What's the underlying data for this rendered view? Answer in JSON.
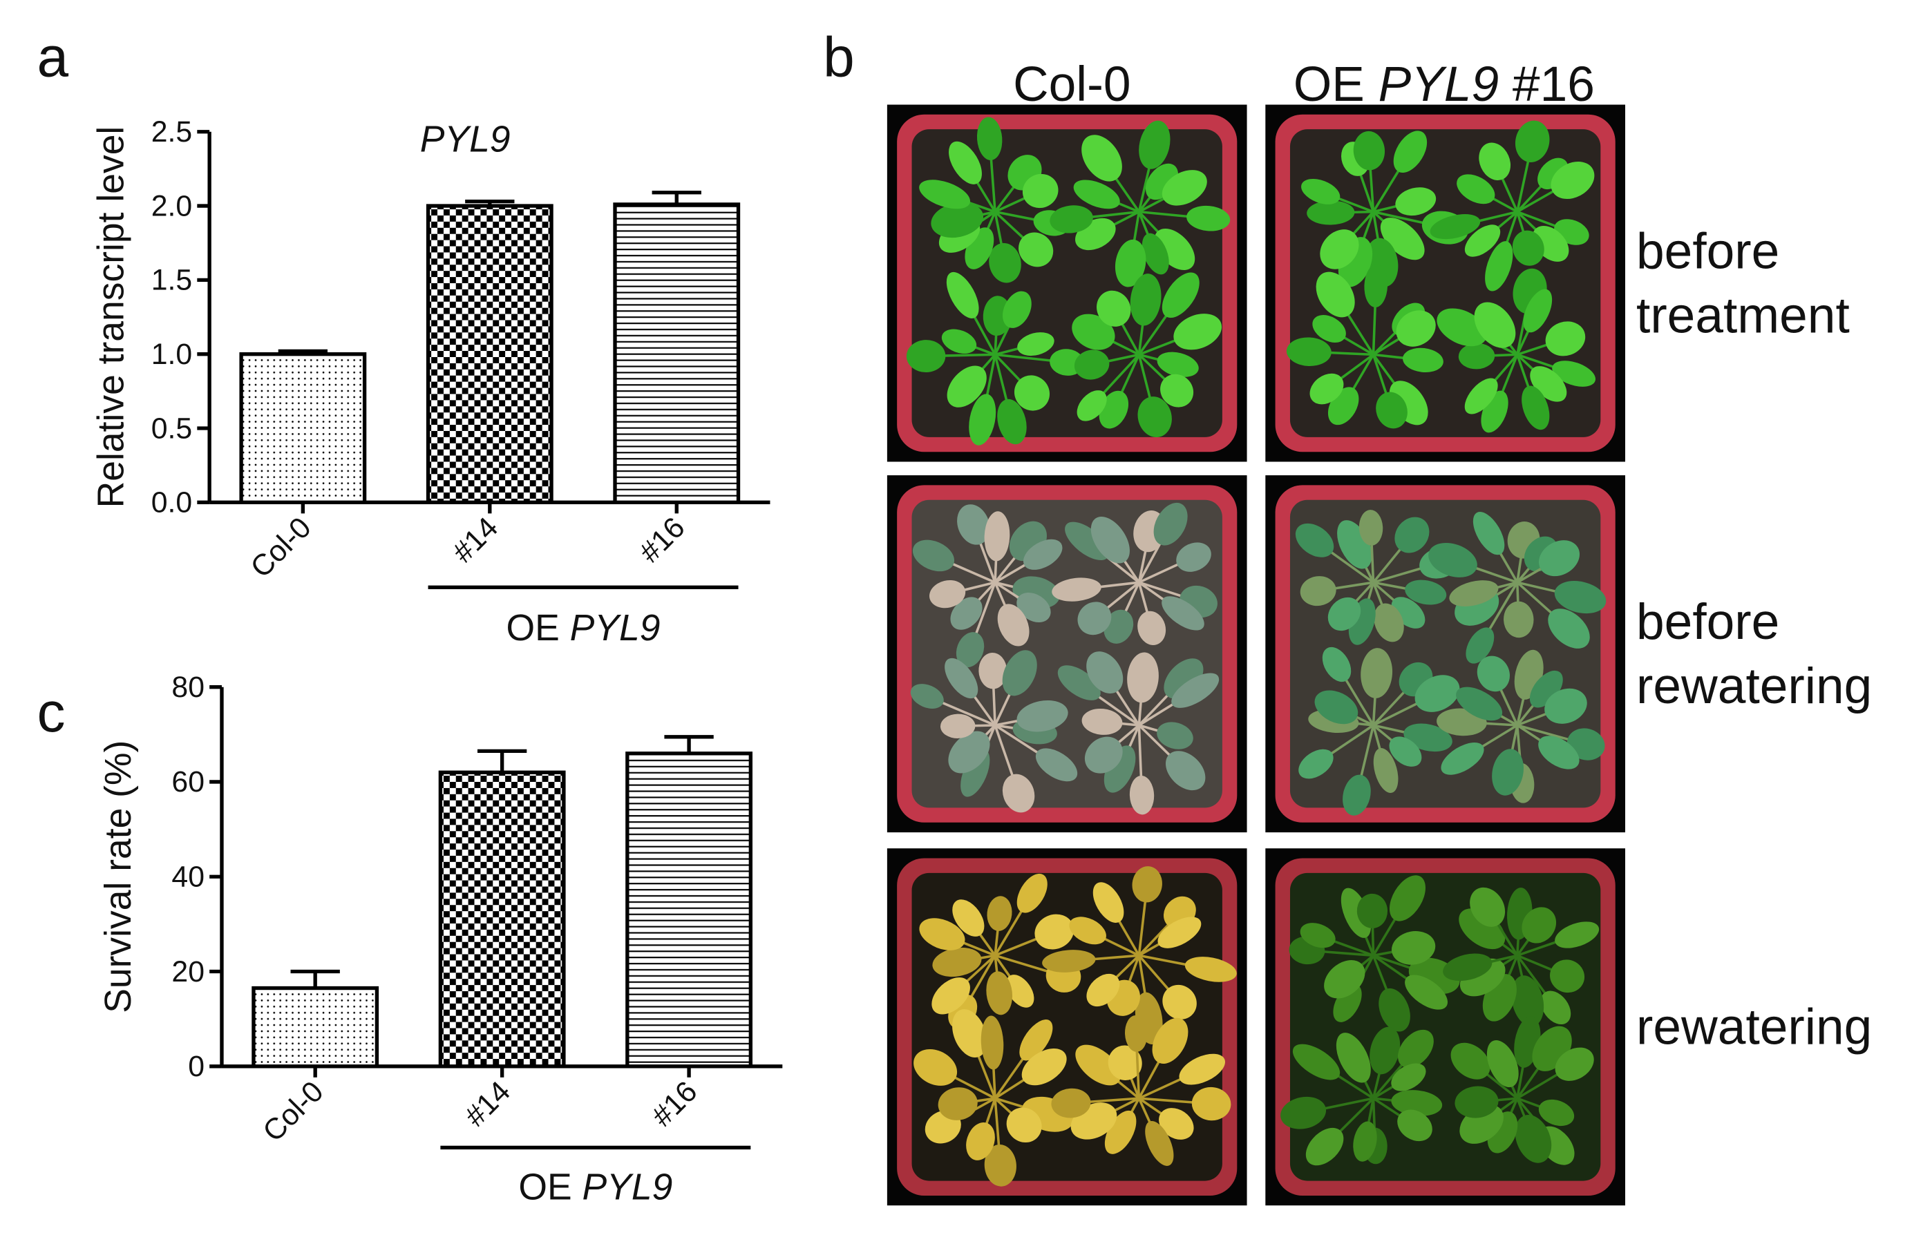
{
  "chart_data": [
    {
      "type": "bar",
      "title": "PYL9",
      "ylabel": "Relative transcript level",
      "categories": [
        "Col-0",
        "#14",
        "#16"
      ],
      "values": [
        1.0,
        2.0,
        2.01
      ],
      "errors": [
        0.02,
        0.03,
        0.08
      ],
      "bar_patterns": [
        "dots",
        "checker",
        "hlines"
      ],
      "color": "#000000",
      "ylim": [
        0,
        2.5
      ],
      "yticks": [
        {
          "value": 0,
          "label": "0.0"
        },
        0.5,
        {
          "value": 1,
          "label": "1.0"
        },
        1.5,
        {
          "value": 2,
          "label": "2.0"
        },
        2.5
      ],
      "group_label": {
        "prefix": "OE",
        "italic": "PYL9"
      }
    },
    {
      "type": "bar",
      "ylabel": "Survival rate (%)",
      "categories": [
        "Col-0",
        "#14",
        "#16"
      ],
      "values": [
        16.5,
        62,
        66
      ],
      "errors": [
        3.5,
        4.5,
        3.5
      ],
      "bar_patterns": [
        "dots",
        "checker",
        "hlines"
      ],
      "color": "#000000",
      "ylim": [
        0,
        80
      ],
      "yticks": [
        0,
        20,
        40,
        60,
        80
      ],
      "group_label": {
        "prefix": "OE",
        "italic": "PYL9"
      }
    }
  ],
  "panel_labels": [
    "a",
    "b",
    "c"
  ],
  "photo_grid": {
    "columns": [
      {
        "text": "Col-0"
      },
      {
        "prefix": "OE",
        "italic": "PYL9",
        "suffix": "#16"
      }
    ],
    "rows": [
      [
        "before",
        "treatment"
      ],
      [
        "before",
        "rewatering"
      ],
      [
        "rewatering"
      ]
    ]
  }
}
